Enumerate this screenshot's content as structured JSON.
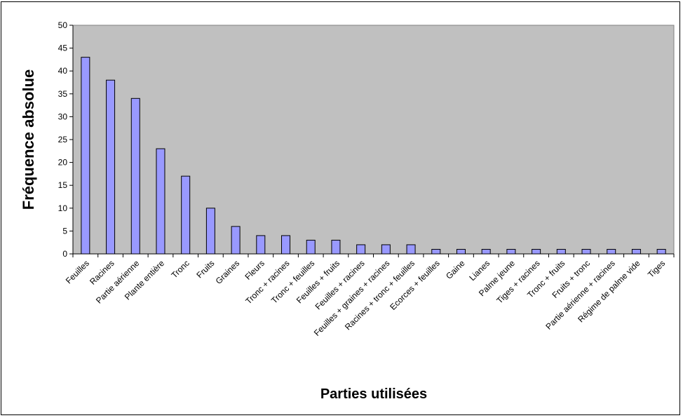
{
  "chart_data": {
    "type": "bar",
    "title": "",
    "xlabel": "Parties utilisées",
    "ylabel": "Fréquence absolue",
    "ylim": [
      0,
      50
    ],
    "y_ticks": [
      0,
      5,
      10,
      15,
      20,
      25,
      30,
      35,
      40,
      45,
      50
    ],
    "grid": false,
    "legend": "none",
    "categories": [
      "Feuilles",
      "Racines",
      "Partie aérienne",
      "Plante entière",
      "Tronc",
      "Fruits",
      "Graines",
      "Fleurs",
      "Tronc + racines",
      "Tronc + feuilles",
      "Feuilles + fruits",
      "Feuilles + racines",
      "Feuilles + graines + racines",
      "Racines + tronc + feuilles",
      "Ecorces + feuilles",
      "Gaine",
      "Lianes",
      "Palme jeune",
      "Tiges + racines",
      "Tronc + fruits",
      "Fruits + tronc",
      "Partie aérienne + racines",
      "Régime de palme vide",
      "Tiges"
    ],
    "values": [
      43,
      38,
      34,
      23,
      17,
      10,
      6,
      4,
      4,
      3,
      3,
      2,
      2,
      2,
      1,
      1,
      1,
      1,
      1,
      1,
      1,
      1,
      1,
      1
    ],
    "colors": {
      "plot_background": "#c0c0c0",
      "bar_fill": "#9999ff",
      "bar_stroke": "#000000"
    }
  }
}
